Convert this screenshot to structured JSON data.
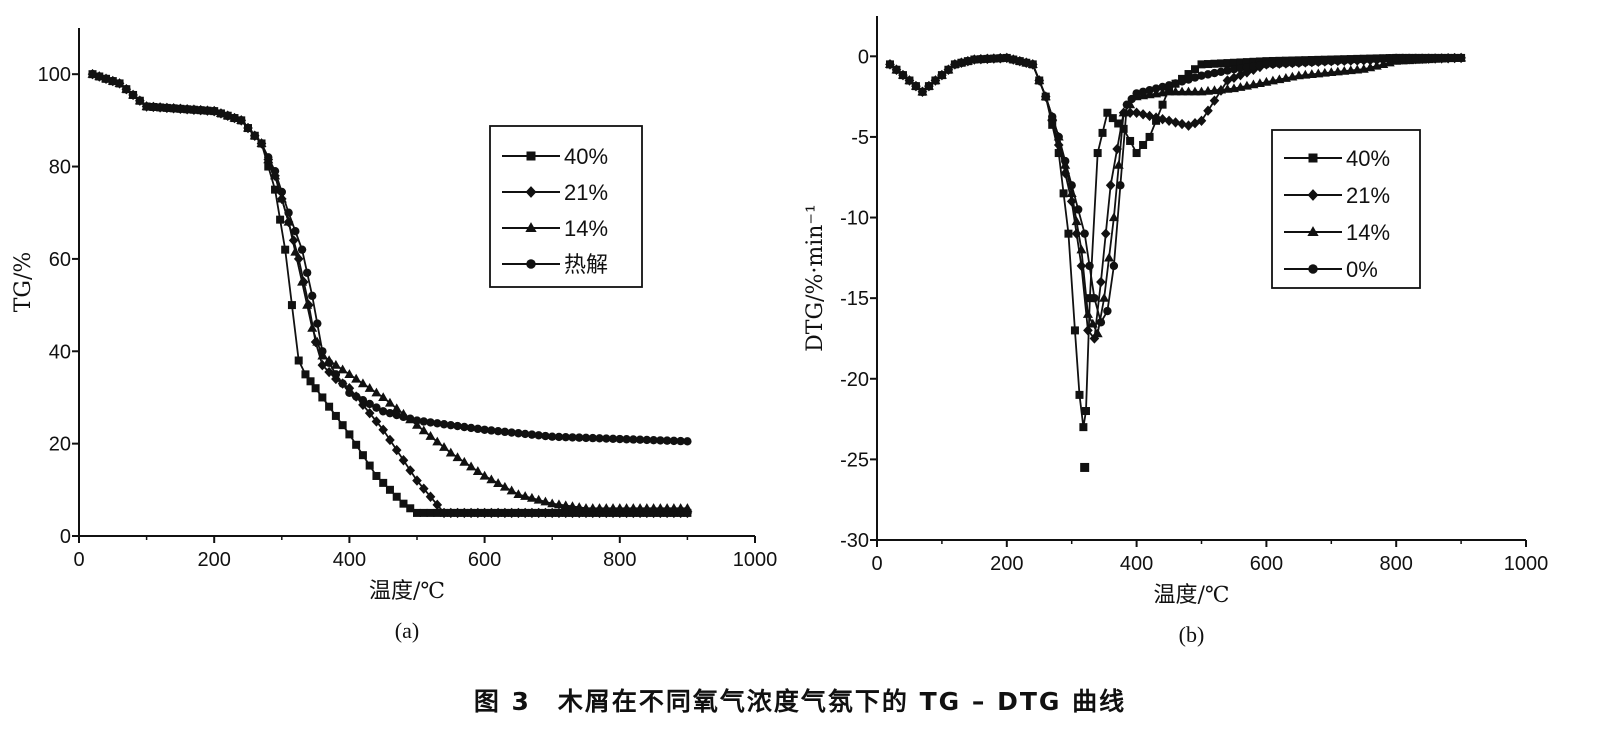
{
  "figure": {
    "caption": "图 3　木屑在不同氧气浓度气氛下的 TG – DTG 曲线"
  },
  "chart_data": [
    {
      "type": "line",
      "panel_label": "(a)",
      "title": "",
      "xlabel": "温度/℃",
      "ylabel": "TG/%",
      "xlim": [
        0,
        1000
      ],
      "ylim": [
        0,
        110
      ],
      "xticks": [
        0,
        200,
        400,
        600,
        800,
        1000
      ],
      "yticks": [
        0,
        20,
        40,
        60,
        80,
        100
      ],
      "legend_position": "top-right",
      "grid": false,
      "series": [
        {
          "name": "40%",
          "marker": "square",
          "x": [
            20,
            60,
            100,
            150,
            200,
            240,
            270,
            290,
            305,
            315,
            325,
            335,
            350,
            370,
            400,
            440,
            480,
            500,
            550,
            600,
            700,
            800,
            900
          ],
          "y": [
            100,
            98,
            93,
            92.5,
            92,
            90,
            85,
            75,
            62,
            50,
            38,
            35,
            32,
            28,
            22,
            13,
            7,
            5,
            5,
            5,
            5,
            5,
            5
          ]
        },
        {
          "name": "21%",
          "marker": "diamond",
          "x": [
            20,
            60,
            100,
            150,
            200,
            240,
            270,
            290,
            310,
            325,
            340,
            350,
            360,
            380,
            400,
            450,
            500,
            540,
            600,
            700,
            800,
            900
          ],
          "y": [
            100,
            98,
            93,
            92.5,
            92,
            90,
            85,
            78,
            68,
            60,
            50,
            42,
            37,
            34,
            32,
            23,
            12,
            5,
            5,
            5,
            5,
            5
          ]
        },
        {
          "name": "14%",
          "marker": "triangle",
          "x": [
            20,
            60,
            100,
            150,
            200,
            240,
            270,
            290,
            310,
            330,
            345,
            360,
            400,
            450,
            500,
            550,
            600,
            650,
            700,
            750,
            800,
            900
          ],
          "y": [
            100,
            98,
            93,
            92.5,
            92,
            90,
            85,
            78,
            68,
            55,
            45,
            39,
            35,
            30,
            24,
            18,
            13,
            9,
            7,
            6,
            6,
            6
          ]
        },
        {
          "name": "热解",
          "marker": "circle",
          "x": [
            20,
            60,
            100,
            150,
            200,
            240,
            270,
            290,
            310,
            330,
            345,
            360,
            380,
            400,
            450,
            500,
            550,
            600,
            700,
            800,
            900
          ],
          "y": [
            100,
            98,
            93,
            92.5,
            92,
            90,
            85,
            79,
            70,
            62,
            52,
            40,
            35,
            31,
            27,
            25,
            24,
            23,
            21.5,
            21,
            20.5
          ]
        }
      ]
    },
    {
      "type": "line",
      "panel_label": "(b)",
      "title": "",
      "xlabel": "温度/℃",
      "ylabel": "DTG/%·min⁻¹",
      "xlim": [
        0,
        1000
      ],
      "ylim": [
        -30,
        2.5
      ],
      "xticks": [
        0,
        200,
        400,
        600,
        800,
        1000
      ],
      "yticks": [
        0,
        -5,
        -10,
        -15,
        -20,
        -25,
        -30
      ],
      "legend_position": "right",
      "grid": false,
      "series": [
        {
          "name": "40%",
          "marker": "square",
          "x": [
            20,
            50,
            70,
            90,
            120,
            150,
            200,
            240,
            260,
            280,
            295,
            305,
            312,
            318,
            322,
            328,
            340,
            355,
            380,
            400,
            420,
            450,
            500,
            600,
            700,
            800,
            900
          ],
          "y": [
            -0.5,
            -1.5,
            -2.2,
            -1.5,
            -0.5,
            -0.2,
            -0.1,
            -0.5,
            -2.5,
            -6,
            -11,
            -17,
            -21,
            -23,
            -22,
            -15,
            -6,
            -3.5,
            -4.5,
            -6,
            -5,
            -2,
            -0.5,
            -0.3,
            -0.2,
            -0.1,
            -0.1
          ]
        },
        {
          "name": "21%",
          "marker": "diamond",
          "x": [
            20,
            50,
            70,
            90,
            120,
            150,
            200,
            240,
            260,
            280,
            300,
            315,
            325,
            335,
            345,
            360,
            380,
            400,
            450,
            480,
            500,
            540,
            600,
            700,
            800,
            900
          ],
          "y": [
            -0.5,
            -1.5,
            -2.2,
            -1.5,
            -0.5,
            -0.2,
            -0.1,
            -0.5,
            -2.5,
            -5.5,
            -9,
            -13,
            -17,
            -17.5,
            -14,
            -8,
            -3.5,
            -3.5,
            -4,
            -4.3,
            -4,
            -1.5,
            -0.5,
            -0.3,
            -0.2,
            -0.1
          ]
        },
        {
          "name": "14%",
          "marker": "triangle",
          "x": [
            20,
            50,
            70,
            90,
            120,
            150,
            200,
            240,
            260,
            280,
            300,
            315,
            325,
            340,
            350,
            365,
            380,
            400,
            450,
            500,
            550,
            600,
            650,
            700,
            750,
            800,
            900
          ],
          "y": [
            -0.5,
            -1.5,
            -2.2,
            -1.5,
            -0.5,
            -0.2,
            -0.1,
            -0.5,
            -2.5,
            -5,
            -8.5,
            -12,
            -16,
            -17.2,
            -15,
            -10,
            -3.5,
            -2.5,
            -2.2,
            -2.2,
            -2,
            -1.6,
            -1.2,
            -1,
            -0.8,
            -0.3,
            -0.1
          ]
        },
        {
          "name": "0%",
          "marker": "circle",
          "x": [
            20,
            50,
            70,
            90,
            120,
            150,
            200,
            240,
            260,
            280,
            300,
            320,
            335,
            345,
            355,
            365,
            375,
            385,
            400,
            450,
            500,
            550,
            600,
            700,
            800,
            900
          ],
          "y": [
            -0.5,
            -1.5,
            -2.2,
            -1.5,
            -0.5,
            -0.2,
            -0.1,
            -0.5,
            -2.5,
            -5,
            -8,
            -11,
            -15,
            -16.5,
            -15.8,
            -13,
            -8,
            -3,
            -2.3,
            -1.8,
            -1.2,
            -0.8,
            -0.5,
            -0.3,
            -0.1,
            -0.1
          ]
        }
      ],
      "annotations": [
        {
          "x": 320,
          "y": -25.5,
          "marker": "square"
        }
      ]
    }
  ]
}
